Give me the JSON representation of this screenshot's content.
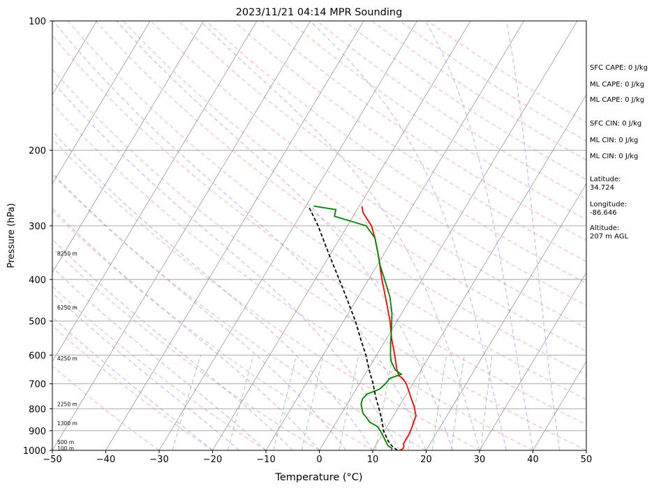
{
  "chart_data": {
    "type": "skew-t",
    "title": "2023/11/21 04:14 MPR Sounding",
    "xlabel": "Temperature (°C)",
    "ylabel": "Pressure (hPa)",
    "xlim": [
      -50,
      50
    ],
    "ylim": [
      1000,
      100
    ],
    "y_scale": "log",
    "grid": true,
    "x_ticks": [
      "−50",
      "−40",
      "−30",
      "−20",
      "−10",
      "0",
      "10",
      "20",
      "30",
      "40",
      "50"
    ],
    "y_ticks": [
      "100",
      "200",
      "300",
      "400",
      "500",
      "600",
      "700",
      "800",
      "900",
      "1000"
    ],
    "height_labels": [
      {
        "p": 989,
        "label": "100 m"
      },
      {
        "p": 957,
        "label": "500 m"
      },
      {
        "p": 865,
        "label": "1300 m"
      },
      {
        "p": 780,
        "label": "2250 m"
      },
      {
        "p": 610,
        "label": "4250 m"
      },
      {
        "p": 465,
        "label": "6250 m"
      },
      {
        "p": 348,
        "label": "8250 m"
      }
    ],
    "series": [
      {
        "color": "#ff0000",
        "points": [
          [
            1000,
            15.1
          ],
          [
            990,
            15.5
          ],
          [
            980,
            15.4
          ],
          [
            965,
            15.0
          ],
          [
            950,
            15.0
          ],
          [
            920,
            15.0
          ],
          [
            890,
            14.8
          ],
          [
            860,
            14.5
          ],
          [
            830,
            14.2
          ],
          [
            810,
            13.5
          ],
          [
            790,
            12.8
          ],
          [
            760,
            11.5
          ],
          [
            730,
            10.2
          ],
          [
            700,
            8.8
          ],
          [
            680,
            7.5
          ],
          [
            670,
            6.5
          ],
          [
            650,
            5.5
          ],
          [
            600,
            3.4
          ],
          [
            550,
            1.0
          ],
          [
            500,
            -1.3
          ],
          [
            450,
            -4.2
          ],
          [
            400,
            -7.5
          ],
          [
            350,
            -11.0
          ],
          [
            320,
            -13.5
          ],
          [
            300,
            -15.5
          ],
          [
            280,
            -18.5
          ],
          [
            270,
            -19.5
          ]
        ]
      },
      {
        "color": "#008000",
        "points": [
          [
            1000,
            13.5
          ],
          [
            990,
            13.4
          ],
          [
            975,
            12.3
          ],
          [
            950,
            11.3
          ],
          [
            930,
            10.5
          ],
          [
            900,
            9.2
          ],
          [
            880,
            8.2
          ],
          [
            860,
            6.3
          ],
          [
            840,
            5.2
          ],
          [
            820,
            4.0
          ],
          [
            800,
            3.3
          ],
          [
            780,
            2.6
          ],
          [
            760,
            2.3
          ],
          [
            740,
            2.6
          ],
          [
            720,
            4.4
          ],
          [
            700,
            4.9
          ],
          [
            680,
            5.1
          ],
          [
            665,
            6.8
          ],
          [
            650,
            5.2
          ],
          [
            620,
            3.4
          ],
          [
            600,
            2.6
          ],
          [
            560,
            1.2
          ],
          [
            520,
            -0.2
          ],
          [
            480,
            -1.8
          ],
          [
            440,
            -4.0
          ],
          [
            400,
            -7.0
          ],
          [
            370,
            -9.5
          ],
          [
            340,
            -11.8
          ],
          [
            320,
            -13.5
          ],
          [
            300,
            -16.5
          ],
          [
            285,
            -23.5
          ],
          [
            275,
            -24.0
          ],
          [
            270,
            -28.5
          ]
        ]
      },
      {
        "color": "#000000",
        "dashed": true,
        "points": [
          [
            1000,
            14.6
          ],
          [
            975,
            13.0
          ],
          [
            950,
            11.8
          ],
          [
            900,
            9.8
          ],
          [
            850,
            8.3
          ],
          [
            800,
            6.5
          ],
          [
            750,
            4.5
          ],
          [
            700,
            2.6
          ],
          [
            650,
            0.3
          ],
          [
            600,
            -2.0
          ],
          [
            550,
            -4.8
          ],
          [
            500,
            -7.8
          ],
          [
            450,
            -11.4
          ],
          [
            400,
            -15.5
          ],
          [
            350,
            -20.2
          ],
          [
            300,
            -25.5
          ],
          [
            270,
            -29.5
          ]
        ]
      }
    ],
    "info": {
      "sfc_cape": "SFC CAPE: 0 J/kg",
      "ml_cape_1": "ML CAPE: 0 J/kg",
      "ml_cape_2": "ML CAPE: 0 J/kg",
      "sfc_cin": "SFC CIN: 0 J/kg",
      "ml_cin_1": "ML CIN: 0 J/kg",
      "ml_cin_2": "ML CIN: 0 J/kg",
      "lat_label": "Latitude:",
      "lat_value": "34.724",
      "lon_label": "Longitude:",
      "lon_value": "-86.646",
      "alt_label": "Altitude:",
      "alt_value": "207 m AGL"
    }
  }
}
